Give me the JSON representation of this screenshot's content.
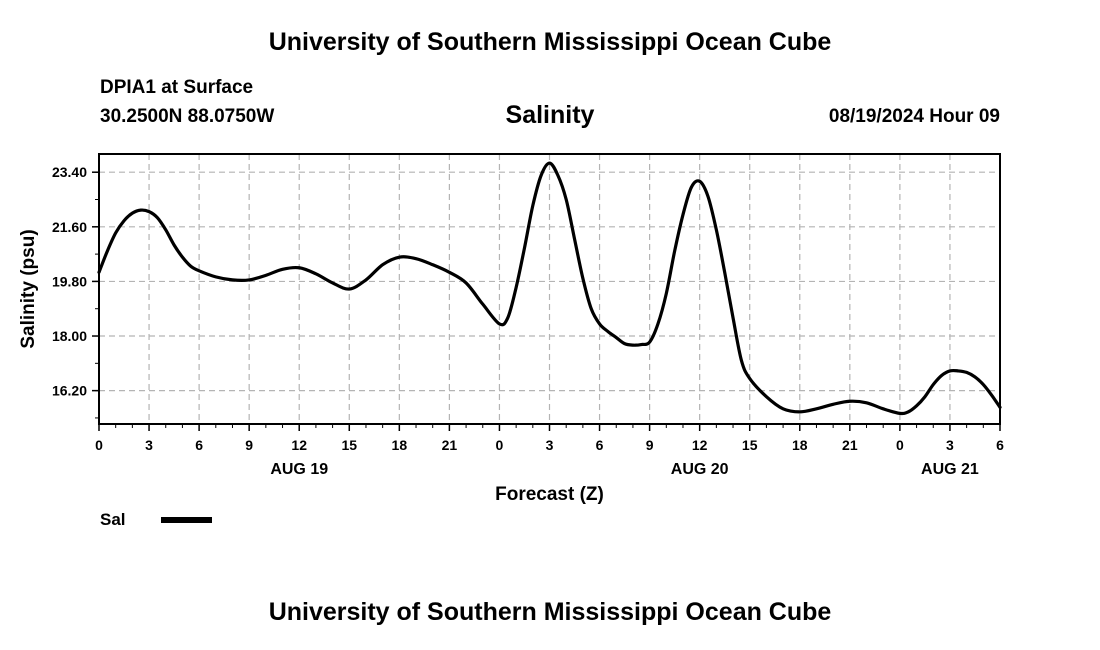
{
  "header": {
    "title": "University of Southern Mississippi Ocean Cube",
    "station": "DPIA1 at Surface",
    "coords": "30.2500N  88.0750W",
    "chart_title": "Salinity",
    "datetime": "08/19/2024 Hour 09"
  },
  "footer": {
    "title": "University of Southern Mississippi Ocean Cube"
  },
  "legend": {
    "label": "Sal",
    "color": "#000000"
  },
  "chart_data": {
    "type": "line",
    "title": "Salinity",
    "xlabel": "Forecast (Z)",
    "ylabel": "Salinity (psu)",
    "xlim": [
      0,
      54
    ],
    "ylim": [
      15.1,
      24.0
    ],
    "yticks": [
      16.2,
      18.0,
      19.8,
      21.6,
      23.4
    ],
    "ytick_labels": [
      "16.20",
      "18.00",
      "19.80",
      "21.60",
      "23.40"
    ],
    "xticks": [
      0,
      3,
      6,
      9,
      12,
      15,
      18,
      21,
      24,
      27,
      30,
      33,
      36,
      39,
      42,
      45,
      48,
      51,
      54
    ],
    "xtick_labels": [
      "0",
      "3",
      "6",
      "9",
      "12",
      "15",
      "18",
      "21",
      "0",
      "3",
      "6",
      "9",
      "12",
      "15",
      "18",
      "21",
      "0",
      "3",
      "6"
    ],
    "date_labels": [
      {
        "x": 12,
        "label": "AUG 19"
      },
      {
        "x": 36,
        "label": "AUG 20"
      },
      {
        "x": 51,
        "label": "AUG 21"
      }
    ],
    "grid": true,
    "series": [
      {
        "name": "Sal",
        "color": "#000000",
        "x": [
          0,
          0.5,
          1,
          1.5,
          2,
          2.5,
          3,
          3.5,
          4,
          4.5,
          5,
          5.5,
          6,
          7,
          8,
          9,
          10,
          11,
          12,
          13,
          14,
          15,
          16,
          17,
          18,
          19,
          20,
          21,
          22,
          23,
          24,
          24.5,
          25,
          25.5,
          26,
          26.5,
          27,
          27.5,
          28,
          28.5,
          29,
          29.5,
          30,
          30.5,
          31,
          31.5,
          32,
          32.5,
          33,
          33.5,
          34,
          34.5,
          35,
          35.5,
          36,
          36.5,
          37,
          37.5,
          38,
          38.5,
          39,
          40,
          41,
          42,
          43,
          44,
          45,
          46,
          47,
          48,
          48.5,
          49,
          49.5,
          50,
          50.5,
          51,
          51.5,
          52,
          52.5,
          53,
          53.5,
          54
        ],
        "y": [
          20.1,
          20.8,
          21.4,
          21.8,
          22.05,
          22.15,
          22.1,
          21.9,
          21.5,
          21.0,
          20.6,
          20.3,
          20.15,
          19.95,
          19.85,
          19.85,
          20.0,
          20.2,
          20.25,
          20.05,
          19.75,
          19.55,
          19.85,
          20.35,
          20.6,
          20.55,
          20.35,
          20.1,
          19.75,
          19.05,
          18.4,
          18.6,
          19.6,
          20.9,
          22.3,
          23.3,
          23.7,
          23.3,
          22.5,
          21.2,
          19.9,
          18.9,
          18.4,
          18.15,
          17.95,
          17.75,
          17.7,
          17.72,
          17.8,
          18.4,
          19.4,
          20.8,
          22.0,
          22.9,
          23.1,
          22.6,
          21.5,
          20.1,
          18.6,
          17.2,
          16.6,
          16.0,
          15.6,
          15.5,
          15.6,
          15.75,
          15.85,
          15.8,
          15.6,
          15.45,
          15.5,
          15.7,
          16.0,
          16.4,
          16.7,
          16.85,
          16.85,
          16.8,
          16.65,
          16.4,
          16.05,
          15.65
        ]
      }
    ]
  }
}
